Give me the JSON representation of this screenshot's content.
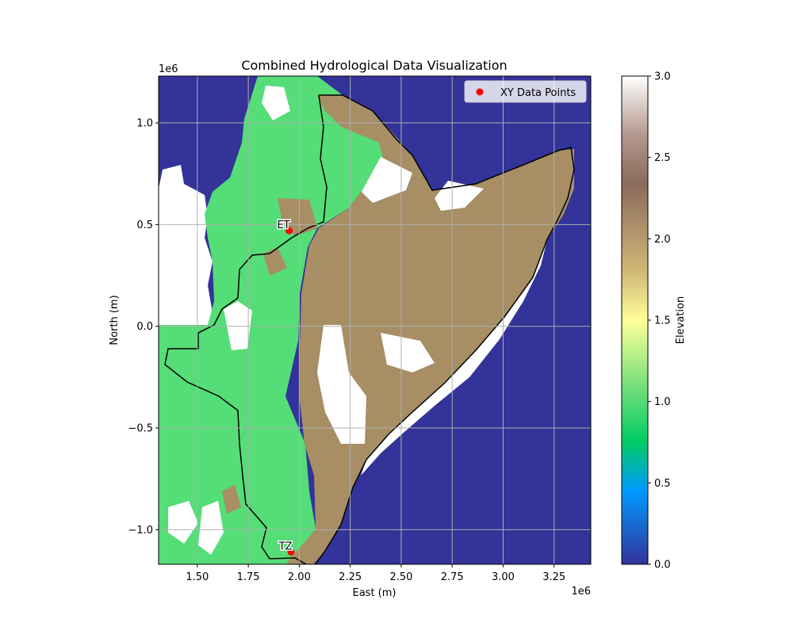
{
  "chart_data": {
    "type": "map",
    "title": "Combined Hydrological Data Visualization",
    "xlabel": "East (m)",
    "ylabel": "North (m)",
    "x_offset_label": "1e6",
    "y_offset_label": "1e6",
    "xlim": [
      1.31,
      3.43
    ],
    "ylim": [
      -1.17,
      1.23
    ],
    "x_ticks": [
      {
        "value": 1.5,
        "label": "1.50"
      },
      {
        "value": 1.75,
        "label": "1.75"
      },
      {
        "value": 2.0,
        "label": "2.00"
      },
      {
        "value": 2.25,
        "label": "2.25"
      },
      {
        "value": 2.5,
        "label": "2.50"
      },
      {
        "value": 2.75,
        "label": "2.75"
      },
      {
        "value": 3.0,
        "label": "3.00"
      },
      {
        "value": 3.25,
        "label": "3.25"
      }
    ],
    "y_ticks": [
      {
        "value": 1.0,
        "label": "1.0"
      },
      {
        "value": 0.5,
        "label": "0.5"
      },
      {
        "value": 0.0,
        "label": "0.0"
      },
      {
        "value": -0.5,
        "label": "−0.5"
      },
      {
        "value": -1.0,
        "label": "−1.0"
      }
    ],
    "grid": true,
    "legend": {
      "placement": "top-right",
      "entries": [
        {
          "name": "XY Data Points",
          "color": "#ff0000",
          "marker": "circle"
        }
      ]
    },
    "points": [
      {
        "x": 1.95,
        "y": 0.47,
        "label": "ET"
      },
      {
        "x": 1.96,
        "y": -1.11,
        "label": "TZ"
      }
    ],
    "colorbar": {
      "label": "Elevation",
      "range": [
        0.0,
        3.0
      ],
      "ticks": [
        {
          "value": 0.0,
          "label": "0.0"
        },
        {
          "value": 0.5,
          "label": "0.5"
        },
        {
          "value": 1.0,
          "label": "1.0"
        },
        {
          "value": 1.5,
          "label": "1.5"
        },
        {
          "value": 2.0,
          "label": "2.0"
        },
        {
          "value": 2.5,
          "label": "2.5"
        },
        {
          "value": 3.0,
          "label": "3.0"
        }
      ],
      "colormap": "terrain"
    },
    "colors": {
      "water": "#333399",
      "lowland": "#55dd77",
      "upland": "#a78e65",
      "nodata": "#ffffff",
      "boundary": "#000000",
      "grid": "#b0b0b0"
    }
  }
}
